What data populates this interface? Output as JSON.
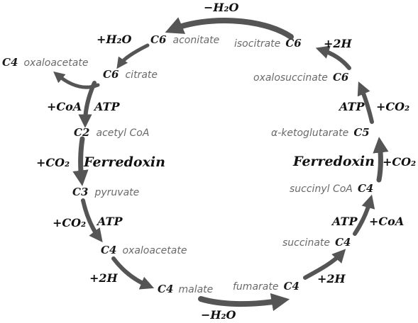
{
  "colors": {
    "arrow": "#555555",
    "compound_text": "#6a6a6a",
    "label_text": "#111111",
    "background": "#ffffff"
  },
  "compounds": {
    "c6_citrate": {
      "num": "C6",
      "name": "citrate"
    },
    "c6_aconitate": {
      "num": "C6",
      "name": "aconitate"
    },
    "c6_isocitrate": {
      "num": "C6",
      "name": "isocitrate"
    },
    "c6_oxalosuccinate": {
      "num": "C6",
      "name": "oxalosuccinate"
    },
    "c5_ketoglutarate": {
      "num": "C5",
      "name": "α-ketoglutarate"
    },
    "c4_succinyl_coa": {
      "num": "C4",
      "name": "succinyl CoA"
    },
    "c4_succinate": {
      "num": "C4",
      "name": "succinate"
    },
    "c4_fumarate": {
      "num": "C4",
      "name": "fumarate"
    },
    "c4_malate": {
      "num": "C4",
      "name": "malate"
    },
    "c4_oxaloacetate": {
      "num": "C4",
      "name": "oxaloacetate"
    },
    "c3_pyruvate": {
      "num": "C3",
      "name": "pyruvate"
    },
    "c2_acetyl_coa": {
      "num": "C2",
      "name": "acetyl CoA"
    },
    "c4_oxaloacetate_out": {
      "num": "C4",
      "name": "oxaloacetate"
    }
  },
  "labels": {
    "minus_h2o_top": "−H₂O",
    "plus_h2o": "+H₂O",
    "plus_2h_top": "+2H",
    "atp_right": "ATP",
    "plus_co2_right": "+CO₂",
    "ferredoxin_right": "Ferredoxin",
    "plus_co2_right2": "+CO₂",
    "atp_right2": "ATP",
    "plus_coa_right": "+CoA",
    "plus_2h_bottom_right": "+2H",
    "minus_h2o_bottom": "−H₂O",
    "plus_2h_bottom_left": "+2H",
    "plus_co2_left": "+CO₂",
    "atp_left": "ATP",
    "ferredoxin_left": "Ferredoxin",
    "plus_co2_left2": "+CO₂",
    "plus_coa_left": "+CoA",
    "atp_left2": "ATP"
  }
}
